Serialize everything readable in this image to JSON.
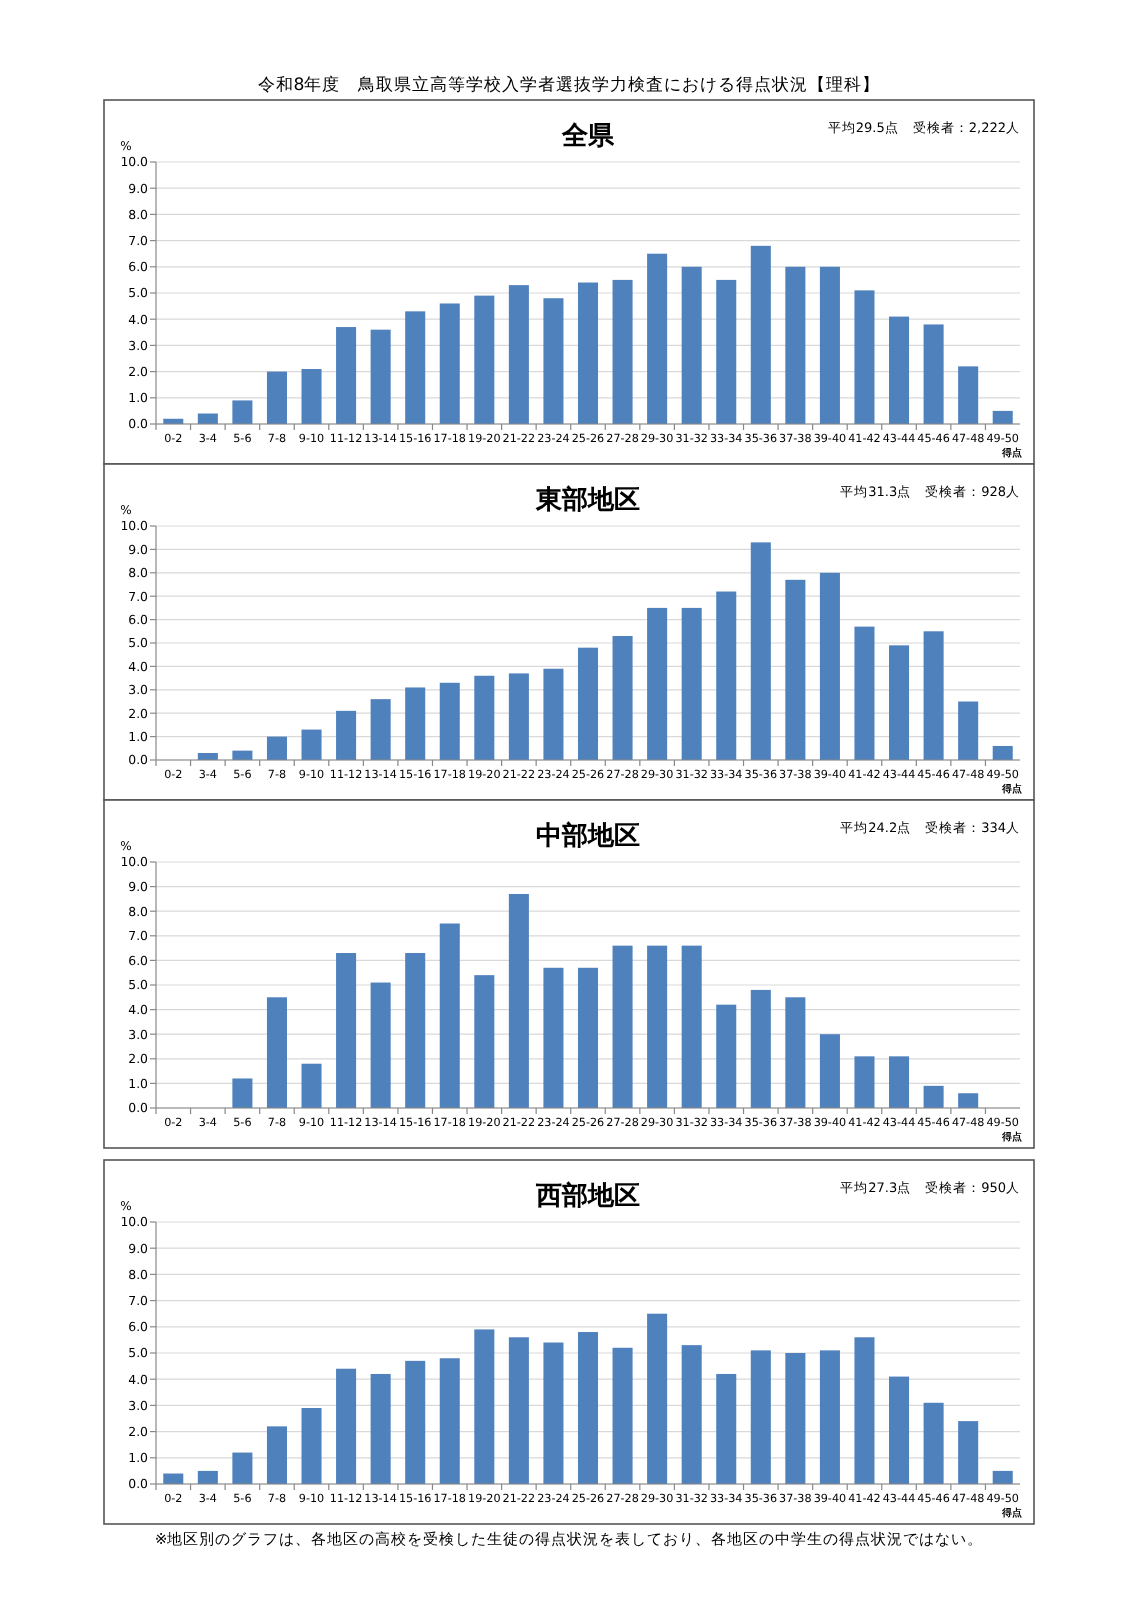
{
  "chart_data": [
    {
      "type": "bar",
      "title": "令和8年度　鳥取県立高等学校入学者選抜学力検査における得点状況【理科】",
      "subtitle": "全県",
      "ylabel": "%",
      "xlabel": "得点",
      "annotations": [
        "平均29.5点　受検者：2,222人"
      ],
      "categories": [
        "0-2",
        "3-4",
        "5-6",
        "7-8",
        "9-10",
        "11-12",
        "13-14",
        "15-16",
        "17-18",
        "19-20",
        "21-22",
        "23-24",
        "25-26",
        "27-28",
        "29-30",
        "31-32",
        "33-34",
        "35-36",
        "37-38",
        "39-40",
        "41-42",
        "43-44",
        "45-46",
        "47-48",
        "49-50"
      ],
      "series": [
        {
          "color": "#4f81bd",
          "values": [
            0.2,
            0.4,
            0.9,
            2.0,
            2.1,
            3.7,
            3.6,
            4.3,
            4.6,
            4.9,
            5.3,
            4.8,
            5.4,
            5.5,
            6.5,
            6.0,
            5.5,
            6.8,
            6.0,
            6.0,
            5.1,
            4.1,
            3.8,
            2.2,
            0.5
          ]
        }
      ],
      "ylim": [
        0,
        10
      ],
      "yticks": [
        {
          "value": 0,
          "label": "0.0"
        },
        {
          "value": 1,
          "label": "1.0"
        },
        {
          "value": 2,
          "label": "2.0"
        },
        {
          "value": 3,
          "label": "3.0"
        },
        {
          "value": 4,
          "label": "4.0"
        },
        {
          "value": 5,
          "label": "5.0"
        },
        {
          "value": 6,
          "label": "6.0"
        },
        {
          "value": 7,
          "label": "7.0"
        },
        {
          "value": 8,
          "label": "8.0"
        },
        {
          "value": 9,
          "label": "9.0"
        },
        {
          "value": 10,
          "label": "10.0"
        }
      ],
      "grid": "y"
    },
    {
      "type": "bar",
      "subtitle": "東部地区",
      "ylabel": "%",
      "xlabel": "得点",
      "annotations": [
        "平均31.3点　受検者：928人"
      ],
      "categories": [
        "0-2",
        "3-4",
        "5-6",
        "7-8",
        "9-10",
        "11-12",
        "13-14",
        "15-16",
        "17-18",
        "19-20",
        "21-22",
        "23-24",
        "25-26",
        "27-28",
        "29-30",
        "31-32",
        "33-34",
        "35-36",
        "37-38",
        "39-40",
        "41-42",
        "43-44",
        "45-46",
        "47-48",
        "49-50"
      ],
      "series": [
        {
          "color": "#4f81bd",
          "values": [
            0.0,
            0.3,
            0.4,
            1.0,
            1.3,
            2.1,
            2.6,
            3.1,
            3.3,
            3.6,
            3.7,
            3.9,
            4.8,
            5.3,
            6.5,
            6.5,
            7.2,
            9.3,
            7.7,
            8.0,
            5.7,
            4.9,
            5.5,
            2.5,
            0.6
          ]
        }
      ],
      "ylim": [
        0,
        10
      ],
      "yticks": [
        {
          "value": 0,
          "label": "0.0"
        },
        {
          "value": 1,
          "label": "1.0"
        },
        {
          "value": 2,
          "label": "2.0"
        },
        {
          "value": 3,
          "label": "3.0"
        },
        {
          "value": 4,
          "label": "4.0"
        },
        {
          "value": 5,
          "label": "5.0"
        },
        {
          "value": 6,
          "label": "6.0"
        },
        {
          "value": 7,
          "label": "7.0"
        },
        {
          "value": 8,
          "label": "8.0"
        },
        {
          "value": 9,
          "label": "9.0"
        },
        {
          "value": 10,
          "label": "10.0"
        }
      ],
      "grid": "y"
    },
    {
      "type": "bar",
      "subtitle": "中部地区",
      "ylabel": "%",
      "xlabel": "得点",
      "annotations": [
        "平均24.2点　受検者：334人"
      ],
      "categories": [
        "0-2",
        "3-4",
        "5-6",
        "7-8",
        "9-10",
        "11-12",
        "13-14",
        "15-16",
        "17-18",
        "19-20",
        "21-22",
        "23-24",
        "25-26",
        "27-28",
        "29-30",
        "31-32",
        "33-34",
        "35-36",
        "37-38",
        "39-40",
        "41-42",
        "43-44",
        "45-46",
        "47-48",
        "49-50"
      ],
      "series": [
        {
          "color": "#4f81bd",
          "values": [
            0.0,
            0.0,
            1.2,
            4.5,
            1.8,
            6.3,
            5.1,
            6.3,
            7.5,
            5.4,
            8.7,
            5.7,
            5.7,
            6.6,
            6.6,
            6.6,
            4.2,
            4.8,
            4.5,
            3.0,
            2.1,
            2.1,
            0.9,
            0.6,
            0.0
          ]
        }
      ],
      "ylim": [
        0,
        10
      ],
      "yticks": [
        {
          "value": 0,
          "label": "0.0"
        },
        {
          "value": 1,
          "label": "1.0"
        },
        {
          "value": 2,
          "label": "2.0"
        },
        {
          "value": 3,
          "label": "3.0"
        },
        {
          "value": 4,
          "label": "4.0"
        },
        {
          "value": 5,
          "label": "5.0"
        },
        {
          "value": 6,
          "label": "6.0"
        },
        {
          "value": 7,
          "label": "7.0"
        },
        {
          "value": 8,
          "label": "8.0"
        },
        {
          "value": 9,
          "label": "9.0"
        },
        {
          "value": 10,
          "label": "10.0"
        }
      ],
      "grid": "y"
    },
    {
      "type": "bar",
      "subtitle": "西部地区",
      "ylabel": "%",
      "xlabel": "得点",
      "annotations": [
        "平均27.3点　受検者：950人",
        "※地区別のグラフは、各地区の高校を受検した生徒の得点状況を表しており、各地区の中学生の得点状況ではない。"
      ],
      "categories": [
        "0-2",
        "3-4",
        "5-6",
        "7-8",
        "9-10",
        "11-12",
        "13-14",
        "15-16",
        "17-18",
        "19-20",
        "21-22",
        "23-24",
        "25-26",
        "27-28",
        "29-30",
        "31-32",
        "33-34",
        "35-36",
        "37-38",
        "39-40",
        "41-42",
        "43-44",
        "45-46",
        "47-48",
        "49-50"
      ],
      "series": [
        {
          "color": "#4f81bd",
          "values": [
            0.4,
            0.5,
            1.2,
            2.2,
            2.9,
            4.4,
            4.2,
            4.7,
            4.8,
            5.9,
            5.6,
            5.4,
            5.8,
            5.2,
            6.5,
            5.3,
            4.2,
            5.1,
            5.0,
            5.1,
            5.6,
            4.1,
            3.1,
            2.4,
            0.5
          ]
        }
      ],
      "ylim": [
        0,
        10
      ],
      "yticks": [
        {
          "value": 0,
          "label": "0.0"
        },
        {
          "value": 1,
          "label": "1.0"
        },
        {
          "value": 2,
          "label": "2.0"
        },
        {
          "value": 3,
          "label": "3.0"
        },
        {
          "value": 4,
          "label": "4.0"
        },
        {
          "value": 5,
          "label": "5.0"
        },
        {
          "value": 6,
          "label": "6.0"
        },
        {
          "value": 7,
          "label": "7.0"
        },
        {
          "value": 8,
          "label": "8.0"
        },
        {
          "value": 9,
          "label": "9.0"
        },
        {
          "value": 10,
          "label": "10.0"
        }
      ],
      "grid": "y"
    }
  ]
}
